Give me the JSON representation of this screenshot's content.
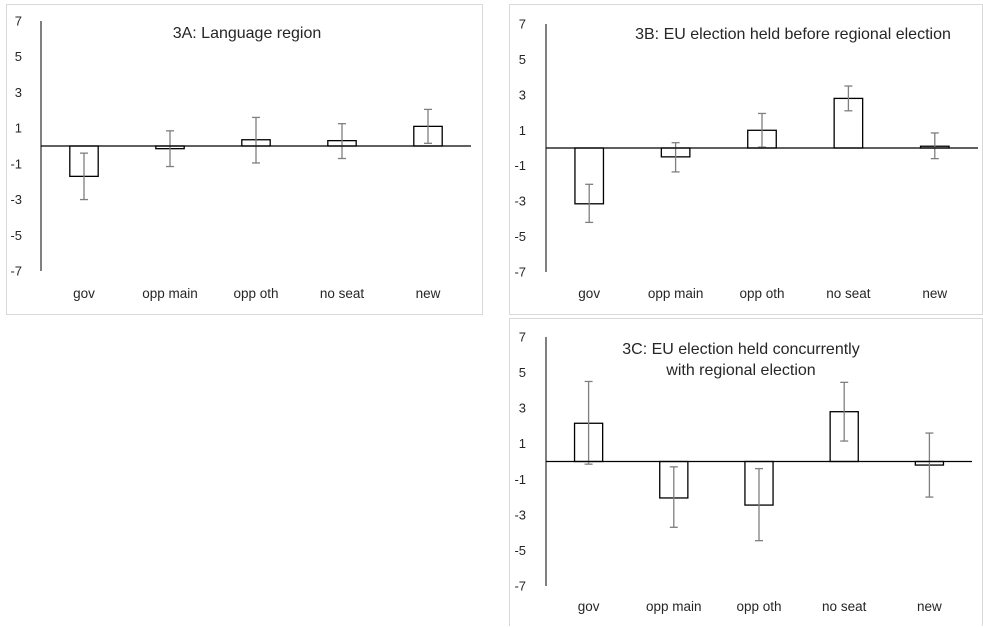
{
  "chart_data": [
    {
      "id": "3A",
      "type": "bar",
      "title_lines": [
        "3A: Language region"
      ],
      "categories": [
        "gov",
        "opp main",
        "opp oth",
        "no seat",
        "new"
      ],
      "values": [
        -1.7,
        -0.15,
        0.35,
        0.3,
        1.1
      ],
      "error_low": [
        -3.0,
        -1.15,
        -0.95,
        -0.7,
        0.15
      ],
      "error_high": [
        -0.4,
        0.85,
        1.6,
        1.25,
        2.05
      ],
      "ylim": [
        -7,
        7
      ],
      "yticks": [
        "7",
        "5",
        "3",
        "1",
        "-1",
        "-3",
        "-5",
        "-7"
      ],
      "grid": false,
      "legend": "none"
    },
    {
      "id": "3B",
      "type": "bar",
      "title_lines": [
        "3B: EU election held before regional election"
      ],
      "categories": [
        "gov",
        "opp main",
        "opp oth",
        "no seat",
        "new"
      ],
      "values": [
        -3.15,
        -0.5,
        1.0,
        2.8,
        0.1
      ],
      "error_low": [
        -4.2,
        -1.35,
        0.05,
        2.1,
        -0.6
      ],
      "error_high": [
        -2.05,
        0.3,
        1.95,
        3.5,
        0.85
      ],
      "ylim": [
        -7,
        7
      ],
      "yticks": [
        "7",
        "5",
        "3",
        "1",
        "-1",
        "-3",
        "-5",
        "-7"
      ],
      "grid": false,
      "legend": "none"
    },
    {
      "id": "3C",
      "type": "bar",
      "title_lines": [
        "3C: EU election held concurrently",
        "with regional election"
      ],
      "categories": [
        "gov",
        "opp main",
        "opp oth",
        "no seat",
        "new"
      ],
      "values": [
        2.15,
        -2.05,
        -2.45,
        2.8,
        -0.2
      ],
      "error_low": [
        -0.15,
        -3.7,
        -4.45,
        1.15,
        -2.0
      ],
      "error_high": [
        4.5,
        -0.3,
        -0.4,
        4.45,
        1.6
      ],
      "ylim": [
        -7,
        7
      ],
      "yticks": [
        "7",
        "5",
        "3",
        "1",
        "-1",
        "-3",
        "-5",
        "-7"
      ],
      "grid": false,
      "legend": "none"
    }
  ],
  "colors": {
    "bar_fill": "#ffffff",
    "bar_stroke": "#000000",
    "axis": "#000000",
    "error_bar": "#7f7f7f",
    "text": "#262626",
    "panel_border": "#d9d9d9"
  }
}
